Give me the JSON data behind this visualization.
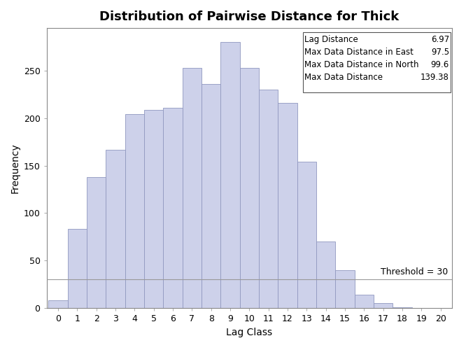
{
  "title": "Distribution of Pairwise Distance for Thick",
  "xlabel": "Lag Class",
  "ylabel": "Frequency",
  "bar_heights": [
    8,
    83,
    138,
    167,
    204,
    209,
    211,
    253,
    236,
    280,
    253,
    230,
    216,
    154,
    70,
    40,
    14,
    5,
    1,
    0,
    0
  ],
  "bar_color": "#cdd1ea",
  "bar_edge_color": "#9098bf",
  "x_ticks": [
    0,
    1,
    2,
    3,
    4,
    5,
    6,
    7,
    8,
    9,
    10,
    11,
    12,
    13,
    14,
    15,
    16,
    17,
    18,
    19,
    20
  ],
  "ylim": [
    0,
    295
  ],
  "xlim": [
    -0.6,
    20.6
  ],
  "yticks": [
    0,
    50,
    100,
    150,
    200,
    250
  ],
  "threshold": 30,
  "threshold_color": "#999999",
  "threshold_label": "Threshold = 30",
  "legend_items": [
    {
      "label": "Lag Distance",
      "value": "6.97"
    },
    {
      "label": "Max Data Distance in East",
      "value": "97.5"
    },
    {
      "label": "Max Data Distance in North",
      "value": "99.6"
    },
    {
      "label": "Max Data Distance",
      "value": "139.38"
    }
  ],
  "background_color": "#ffffff",
  "plot_bg_color": "#ffffff",
  "title_fontsize": 13,
  "axis_fontsize": 10,
  "tick_fontsize": 9,
  "info_fontsize": 8.5
}
